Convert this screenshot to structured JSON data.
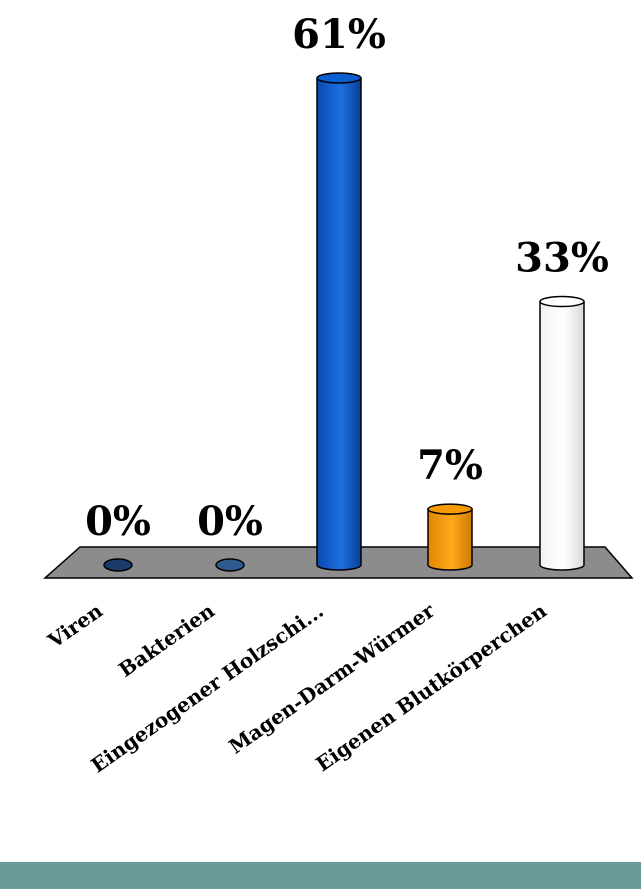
{
  "chart_data": {
    "type": "bar",
    "categories": [
      "Viren",
      "Bakterien",
      "Eingezogener Holzschi...",
      "Magen-Darm-Würmer",
      "Eigenen Blutkörperchen"
    ],
    "values": [
      0,
      0,
      61,
      7,
      33
    ],
    "value_labels": [
      "0%",
      "0%",
      "61%",
      "7%",
      "33%"
    ],
    "unit": "%",
    "ylim": [
      0,
      61
    ],
    "grid": false,
    "legend": "none",
    "three_d": true,
    "colors": {
      "bars": [
        "#1a3a6a",
        "#2e5a8e",
        "#0a5fd0",
        "#f59a00",
        "#ffffff"
      ],
      "floor": "#8c8c8c",
      "footer": "#6a9a9a"
    }
  }
}
